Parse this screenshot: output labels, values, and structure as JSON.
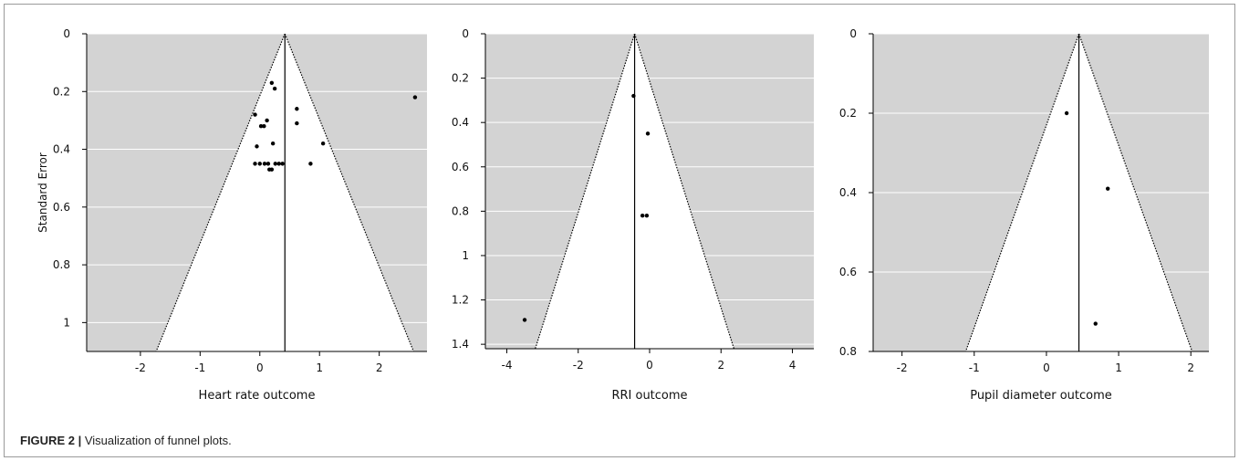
{
  "caption": {
    "label": "FIGURE 2 |",
    "text": " Visualization of funnel plots."
  },
  "colors": {
    "shade": "#d3d3d3",
    "inside": "#ffffff",
    "gridline": "#ffffff",
    "line": "#000000",
    "point": "#000000"
  },
  "chart_data": [
    {
      "type": "scatter",
      "subtype": "funnel",
      "title": "",
      "xlabel": "Heart rate outcome",
      "ylabel": "Standard Error",
      "xlim": [
        -2.9,
        2.8
      ],
      "ylim": [
        0,
        1.1
      ],
      "y_reversed": true,
      "xticks": [
        -2,
        -1,
        0,
        1,
        2
      ],
      "yticks": [
        0,
        0.2,
        0.4,
        0.6,
        0.8,
        1
      ],
      "ytick_labels": [
        "0",
        "0.2",
        "0.4",
        "0.6",
        "0.8",
        "1"
      ],
      "grid": "horizontal",
      "pooled_effect": 0.42,
      "funnel_z": 1.96,
      "points": [
        {
          "x": 2.6,
          "y": 0.22
        },
        {
          "x": 0.2,
          "y": 0.17
        },
        {
          "x": 0.25,
          "y": 0.19
        },
        {
          "x": 0.62,
          "y": 0.26
        },
        {
          "x": -0.08,
          "y": 0.28
        },
        {
          "x": 0.12,
          "y": 0.3
        },
        {
          "x": 0.62,
          "y": 0.31
        },
        {
          "x": 0.02,
          "y": 0.32
        },
        {
          "x": 0.07,
          "y": 0.32
        },
        {
          "x": 0.22,
          "y": 0.38
        },
        {
          "x": 1.06,
          "y": 0.38
        },
        {
          "x": -0.05,
          "y": 0.39
        },
        {
          "x": -0.08,
          "y": 0.45
        },
        {
          "x": 0.0,
          "y": 0.45
        },
        {
          "x": 0.08,
          "y": 0.45
        },
        {
          "x": 0.14,
          "y": 0.45
        },
        {
          "x": 0.26,
          "y": 0.45
        },
        {
          "x": 0.32,
          "y": 0.45
        },
        {
          "x": 0.38,
          "y": 0.45
        },
        {
          "x": 0.85,
          "y": 0.45
        },
        {
          "x": 0.16,
          "y": 0.47
        },
        {
          "x": 0.2,
          "y": 0.47
        }
      ]
    },
    {
      "type": "scatter",
      "subtype": "funnel",
      "title": "",
      "xlabel": "RRI outcome",
      "ylabel": "",
      "xlim": [
        -4.6,
        4.6
      ],
      "ylim": [
        0,
        1.42
      ],
      "y_reversed": true,
      "xticks": [
        -4,
        -2,
        0,
        2,
        4
      ],
      "yticks": [
        0,
        0.2,
        0.4,
        0.6,
        0.8,
        1,
        1.2,
        1.4
      ],
      "ytick_labels": [
        "0",
        "0.2",
        "0.4",
        "0.6",
        "0.8",
        "1",
        "1.2",
        "1.4"
      ],
      "grid": "horizontal",
      "pooled_effect": -0.42,
      "funnel_z": 1.96,
      "points": [
        {
          "x": -0.45,
          "y": 0.28
        },
        {
          "x": -0.05,
          "y": 0.45
        },
        {
          "x": -0.2,
          "y": 0.82
        },
        {
          "x": -0.08,
          "y": 0.82
        },
        {
          "x": -3.5,
          "y": 1.29
        }
      ]
    },
    {
      "type": "scatter",
      "subtype": "funnel",
      "title": "",
      "xlabel": "Pupil diameter outcome",
      "ylabel": "",
      "xlim": [
        -2.4,
        2.25
      ],
      "ylim": [
        0,
        0.8
      ],
      "y_reversed": true,
      "xticks": [
        -2,
        -1,
        0,
        1,
        2
      ],
      "yticks": [
        0,
        0.2,
        0.4,
        0.6,
        0.8
      ],
      "ytick_labels": [
        "0",
        "0.2",
        "0.4",
        "0.6",
        "0.8"
      ],
      "grid": "horizontal",
      "pooled_effect": 0.45,
      "funnel_z": 1.96,
      "points": [
        {
          "x": 0.28,
          "y": 0.2
        },
        {
          "x": 0.85,
          "y": 0.39
        },
        {
          "x": 0.68,
          "y": 0.73
        }
      ]
    }
  ]
}
